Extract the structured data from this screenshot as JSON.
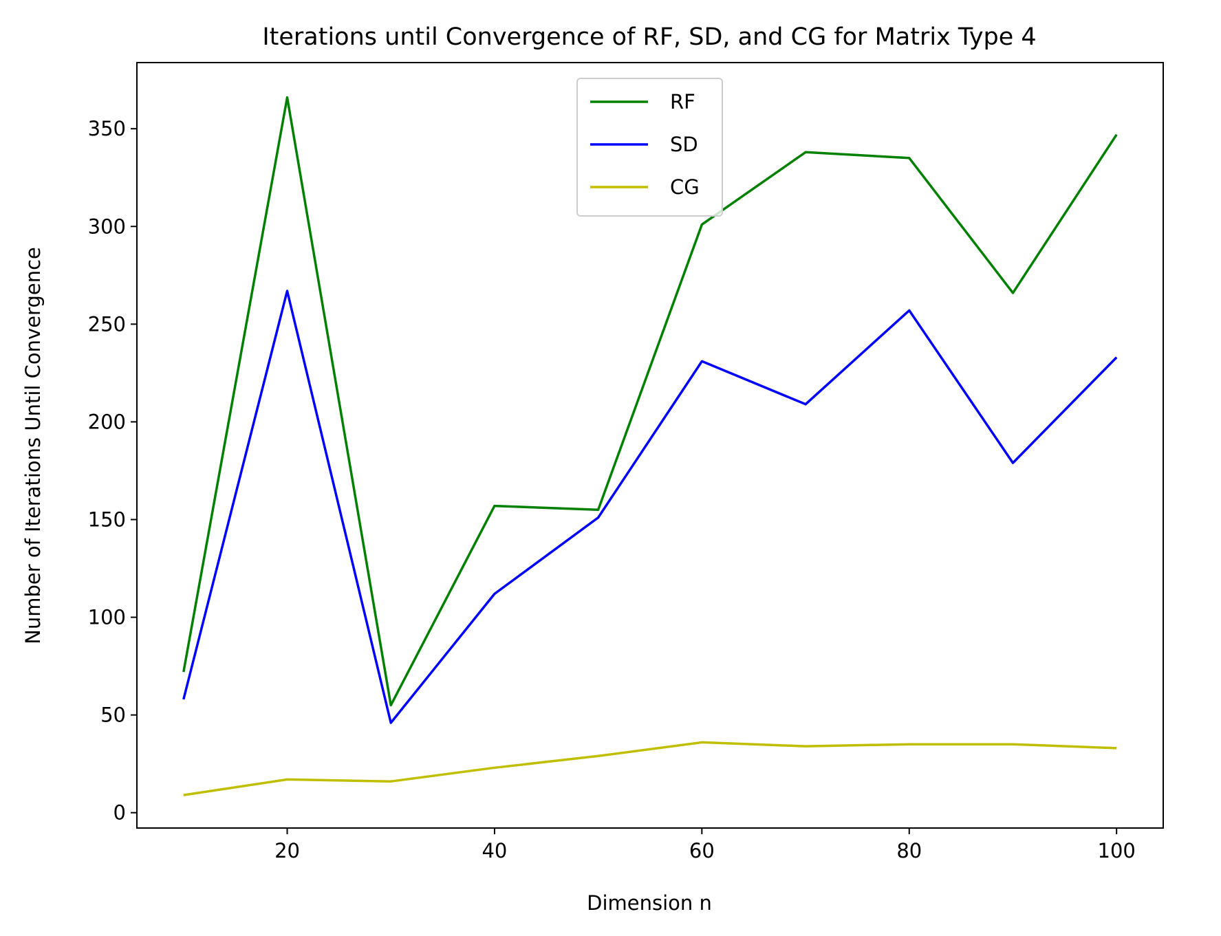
{
  "chart_data": {
    "type": "line",
    "title": "Iterations until Convergence of RF, SD, and CG for Matrix Type 4",
    "xlabel": "Dimension n",
    "ylabel": "Number of Iterations Until Convergence",
    "x": [
      10,
      20,
      30,
      40,
      50,
      60,
      70,
      80,
      90,
      100
    ],
    "series": [
      {
        "name": "RF",
        "color": "#008000",
        "values": [
          72,
          366,
          55,
          157,
          155,
          301,
          338,
          335,
          266,
          347
        ]
      },
      {
        "name": "SD",
        "color": "#0000ff",
        "values": [
          58,
          267,
          46,
          112,
          151,
          231,
          209,
          257,
          179,
          233
        ]
      },
      {
        "name": "CG",
        "color": "#bfbf00",
        "values": [
          9,
          17,
          16,
          23,
          29,
          36,
          34,
          35,
          35,
          33
        ]
      }
    ],
    "xlim": [
      5.5,
      104.5
    ],
    "ylim": [
      -7.85,
      383.85
    ],
    "xticks": [
      20,
      40,
      60,
      80,
      100
    ],
    "xtick_labels": [
      "20",
      "40",
      "60",
      "80",
      "100"
    ],
    "yticks": [
      0,
      50,
      100,
      150,
      200,
      250,
      300,
      350
    ],
    "ytick_labels": [
      "0",
      "50",
      "100",
      "150",
      "200",
      "250",
      "300",
      "350"
    ],
    "grid": false,
    "legend_position": "upper-center"
  }
}
